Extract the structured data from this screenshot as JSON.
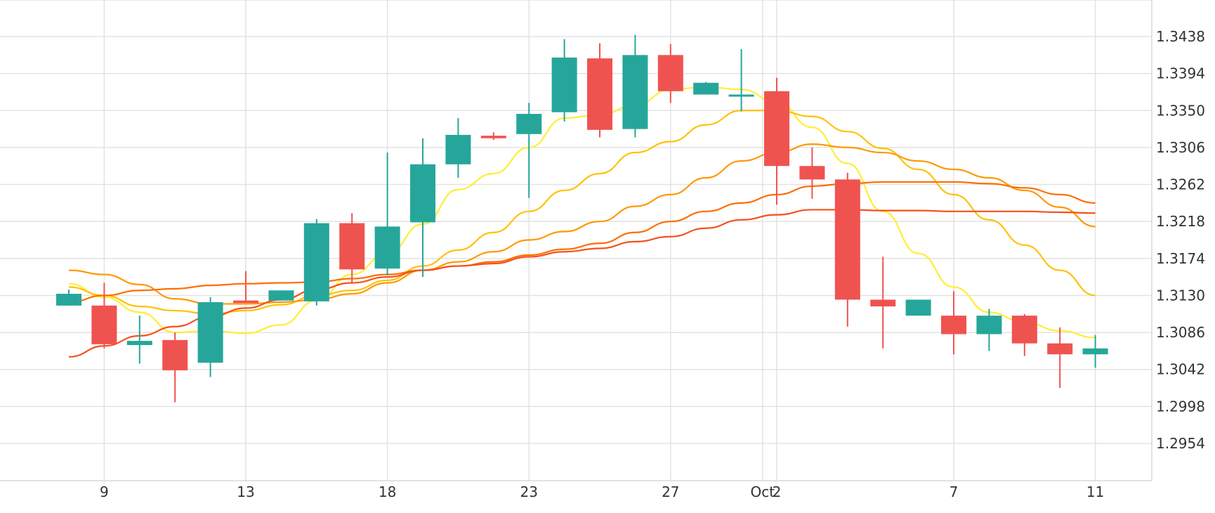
{
  "chart_data": {
    "type": "candlestick",
    "title": "",
    "xlabel": "",
    "ylabel": "",
    "y_axis_position": "right",
    "grid": true,
    "ylim": [
      1.291,
      1.3472
    ],
    "y_ticks": [
      "1.3438",
      "1.3394",
      "1.3350",
      "1.3306",
      "1.3262",
      "1.3218",
      "1.3174",
      "1.3130",
      "1.3086",
      "1.3042",
      "1.2998",
      "1.2954"
    ],
    "x_ticks": [
      {
        "slot": 1,
        "label": "9"
      },
      {
        "slot": 5,
        "label": "13"
      },
      {
        "slot": 9,
        "label": "18"
      },
      {
        "slot": 13,
        "label": "23"
      },
      {
        "slot": 17,
        "label": "27"
      },
      {
        "slot": 19.6,
        "label": "Oct"
      },
      {
        "slot": 20,
        "label": "2"
      },
      {
        "slot": 25,
        "label": "7"
      },
      {
        "slot": 29,
        "label": "11"
      }
    ],
    "up_color": "#26a69a",
    "down_color": "#ef5350",
    "candles": [
      {
        "o": 1.3118,
        "h": 1.3137,
        "l": 1.3118,
        "c": 1.3132
      },
      {
        "o": 1.3118,
        "h": 1.3145,
        "l": 1.3067,
        "c": 1.3072
      },
      {
        "o": 1.3071,
        "h": 1.3106,
        "l": 1.3049,
        "c": 1.3076
      },
      {
        "o": 1.3077,
        "h": 1.3086,
        "l": 1.3003,
        "c": 1.3041
      },
      {
        "o": 1.305,
        "h": 1.3128,
        "l": 1.3033,
        "c": 1.3122
      },
      {
        "o": 1.3124,
        "h": 1.3159,
        "l": 1.3122,
        "c": 1.3121
      },
      {
        "o": 1.3124,
        "h": 1.3136,
        "l": 1.3124,
        "c": 1.3136
      },
      {
        "o": 1.3123,
        "h": 1.3221,
        "l": 1.3118,
        "c": 1.3216
      },
      {
        "o": 1.3216,
        "h": 1.3228,
        "l": 1.3144,
        "c": 1.3161
      },
      {
        "o": 1.3162,
        "h": 1.33,
        "l": 1.3154,
        "c": 1.3212
      },
      {
        "o": 1.3217,
        "h": 1.3317,
        "l": 1.3152,
        "c": 1.3286
      },
      {
        "o": 1.3286,
        "h": 1.3341,
        "l": 1.327,
        "c": 1.3321
      },
      {
        "o": 1.332,
        "h": 1.3324,
        "l": 1.3315,
        "c": 1.3317
      },
      {
        "o": 1.3322,
        "h": 1.3359,
        "l": 1.3246,
        "c": 1.3346
      },
      {
        "o": 1.3348,
        "h": 1.3435,
        "l": 1.3337,
        "c": 1.3413
      },
      {
        "o": 1.3412,
        "h": 1.343,
        "l": 1.3318,
        "c": 1.3327
      },
      {
        "o": 1.3328,
        "h": 1.344,
        "l": 1.3318,
        "c": 1.3416
      },
      {
        "o": 1.3416,
        "h": 1.3429,
        "l": 1.3359,
        "c": 1.3373
      },
      {
        "o": 1.3369,
        "h": 1.3384,
        "l": 1.3369,
        "c": 1.3383
      },
      {
        "o": 1.3369,
        "h": 1.3423,
        "l": 1.3349,
        "c": 1.3369
      },
      {
        "o": 1.3373,
        "h": 1.3389,
        "l": 1.3238,
        "c": 1.3284
      },
      {
        "o": 1.3284,
        "h": 1.3306,
        "l": 1.3245,
        "c": 1.3268
      },
      {
        "o": 1.3268,
        "h": 1.3276,
        "l": 1.3093,
        "c": 1.3125
      },
      {
        "o": 1.3125,
        "h": 1.3176,
        "l": 1.3067,
        "c": 1.3117
      },
      {
        "o": 1.3106,
        "h": 1.3125,
        "l": 1.3106,
        "c": 1.3125
      },
      {
        "o": 1.3106,
        "h": 1.3135,
        "l": 1.306,
        "c": 1.3084
      },
      {
        "o": 1.3084,
        "h": 1.3114,
        "l": 1.3064,
        "c": 1.3106
      },
      {
        "o": 1.3106,
        "h": 1.3108,
        "l": 1.3058,
        "c": 1.3073
      },
      {
        "o": 1.3073,
        "h": 1.3092,
        "l": 1.302,
        "c": 1.306
      },
      {
        "o": 1.306,
        "h": 1.3083,
        "l": 1.3044,
        "c": 1.3067
      }
    ],
    "series": [
      {
        "color": "#ffee33",
        "x": [
          0,
          1,
          2,
          3,
          4,
          5,
          6,
          7,
          8,
          9,
          10,
          11,
          12,
          13,
          14,
          15,
          16,
          17,
          18,
          19,
          20,
          21,
          22,
          23,
          24,
          25,
          26,
          27,
          28,
          29
        ],
        "values": [
          1.3144,
          1.3128,
          1.311,
          1.3086,
          1.3088,
          1.3085,
          1.3095,
          1.3124,
          1.3155,
          1.318,
          1.3215,
          1.3256,
          1.3275,
          1.3306,
          1.3341,
          1.3345,
          1.3356,
          1.3375,
          1.3378,
          1.3375,
          1.336,
          1.333,
          1.3287,
          1.323,
          1.318,
          1.314,
          1.311,
          1.3098,
          1.3088,
          1.308
        ]
      },
      {
        "color": "#ffc107",
        "x": [
          0,
          1,
          2,
          3,
          4,
          5,
          6,
          7,
          8,
          9,
          10,
          11,
          12,
          13,
          14,
          15,
          16,
          17,
          18,
          19,
          20,
          21,
          22,
          23,
          24,
          25,
          26,
          27,
          28,
          29
        ],
        "values": [
          1.314,
          1.313,
          1.3117,
          1.3112,
          1.3108,
          1.3112,
          1.3119,
          1.313,
          1.3136,
          1.3148,
          1.3165,
          1.3184,
          1.3205,
          1.323,
          1.3255,
          1.3275,
          1.33,
          1.3313,
          1.3333,
          1.335,
          1.335,
          1.3343,
          1.3325,
          1.3305,
          1.328,
          1.325,
          1.322,
          1.319,
          1.316,
          1.313
        ]
      },
      {
        "color": "#ff9800",
        "x": [
          0,
          1,
          2,
          3,
          4,
          5,
          6,
          7,
          8,
          9,
          10,
          11,
          12,
          13,
          14,
          15,
          16,
          17,
          18,
          19,
          20,
          21,
          22,
          23,
          24,
          25,
          26,
          27,
          28,
          29
        ],
        "values": [
          1.316,
          1.3155,
          1.3143,
          1.3126,
          1.312,
          1.312,
          1.3122,
          1.3125,
          1.3132,
          1.3145,
          1.316,
          1.317,
          1.3182,
          1.3196,
          1.3206,
          1.3218,
          1.3236,
          1.325,
          1.327,
          1.329,
          1.33,
          1.331,
          1.3306,
          1.33,
          1.329,
          1.328,
          1.327,
          1.3255,
          1.3235,
          1.3212
        ]
      },
      {
        "color": "#ff6d00",
        "x": [
          0,
          1,
          2,
          3,
          4,
          5,
          6,
          7,
          8,
          9,
          10,
          11,
          12,
          13,
          14,
          15,
          16,
          17,
          18,
          19,
          20,
          21,
          22,
          23,
          24,
          25,
          26,
          27,
          28,
          29
        ],
        "values": [
          1.3122,
          1.313,
          1.3136,
          1.3138,
          1.3142,
          1.3144,
          1.3145,
          1.3146,
          1.315,
          1.3155,
          1.316,
          1.3165,
          1.317,
          1.3178,
          1.3185,
          1.3192,
          1.3205,
          1.3218,
          1.323,
          1.324,
          1.325,
          1.326,
          1.3263,
          1.3265,
          1.3265,
          1.3265,
          1.3263,
          1.3258,
          1.325,
          1.324
        ]
      },
      {
        "color": "#f4511e",
        "x": [
          0,
          1,
          2,
          3,
          4,
          5,
          6,
          7,
          8,
          9,
          10,
          11,
          12,
          13,
          14,
          15,
          16,
          17,
          18,
          19,
          20,
          21,
          22,
          23,
          24,
          25,
          26,
          27,
          28,
          29
        ],
        "values": [
          1.3057,
          1.307,
          1.3082,
          1.3093,
          1.3105,
          1.3115,
          1.3125,
          1.3137,
          1.3145,
          1.3152,
          1.316,
          1.3165,
          1.3168,
          1.3176,
          1.3182,
          1.3186,
          1.3194,
          1.32,
          1.321,
          1.322,
          1.3226,
          1.3232,
          1.3232,
          1.3231,
          1.3231,
          1.323,
          1.323,
          1.323,
          1.3229,
          1.3228
        ]
      }
    ]
  }
}
